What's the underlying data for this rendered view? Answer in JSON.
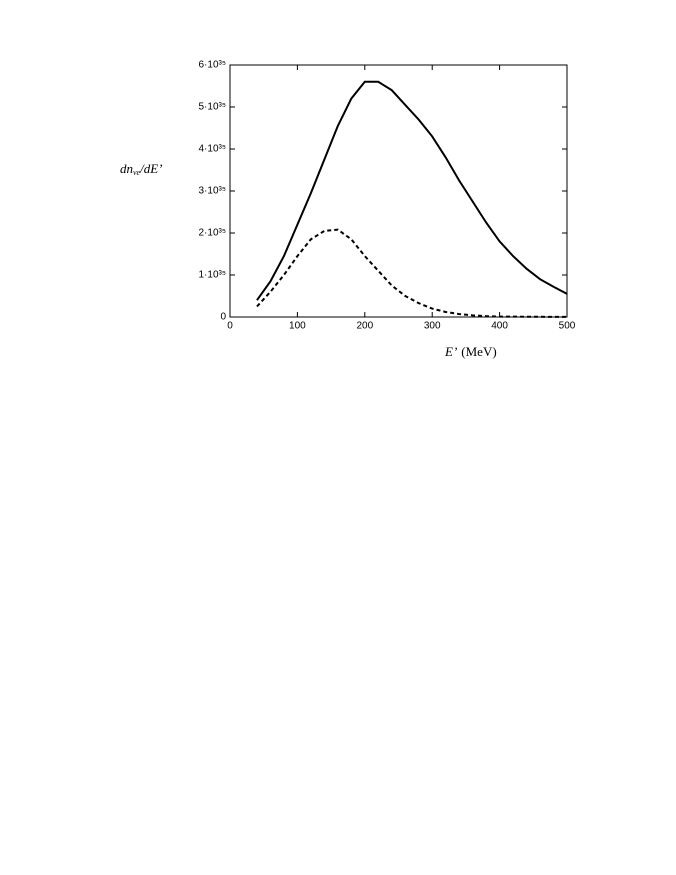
{
  "chart_data": {
    "type": "line",
    "ylabel": {
      "base": "dn",
      "subscript": "νe",
      "rest": "/dE’"
    },
    "xlabel": {
      "symbol": "E’",
      "unit": "(MeV)"
    },
    "x": [
      40,
      60,
      80,
      100,
      120,
      140,
      160,
      180,
      200,
      220,
      240,
      260,
      280,
      300,
      320,
      340,
      360,
      380,
      400,
      420,
      440,
      460,
      480,
      500
    ],
    "series": [
      {
        "color": "#000000",
        "dash": false,
        "values": [
          4e+34,
          8.5e+34,
          1.45e+35,
          2.2e+35,
          2.95e+35,
          3.75e+35,
          4.55e+35,
          5.2e+35,
          5.6e+35,
          5.6e+35,
          5.4e+35,
          5.05e+35,
          4.7e+35,
          4.3e+35,
          3.8e+35,
          3.25e+35,
          2.75e+35,
          2.25e+35,
          1.8e+35,
          1.45e+35,
          1.15e+35,
          9e+34,
          7.2e+34,
          5.5e+34
        ]
      },
      {
        "color": "#000000",
        "dash": true,
        "values": [
          2.5e+34,
          6e+34,
          1e+35,
          1.45e+35,
          1.85e+35,
          2.05e+35,
          2.08e+35,
          1.85e+35,
          1.45e+35,
          1.1e+35,
          7.5e+34,
          5e+34,
          3.3e+34,
          2e+34,
          1.2e+34,
          7e+33,
          4e+33,
          2e+33,
          1e+33,
          1e+33,
          5e+32,
          5e+32,
          3e+32,
          3e+32
        ]
      }
    ],
    "xlim": [
      0,
      500
    ],
    "xticks": [
      0,
      100,
      200,
      300,
      400,
      500
    ],
    "ylim": [
      0,
      6e+35
    ],
    "yticks": [
      0,
      {
        "value": 1e+35,
        "label": "1·10³⁵"
      },
      {
        "value": 2e+35,
        "label": "2·10³⁵"
      },
      {
        "value": 3e+35,
        "label": "3·10³⁵"
      },
      {
        "value": 4e+35,
        "label": "4·10³⁵"
      },
      {
        "value": 5e+35,
        "label": "5·10³⁵"
      },
      {
        "value": 6e+35,
        "label": "6·10³⁵"
      }
    ]
  }
}
